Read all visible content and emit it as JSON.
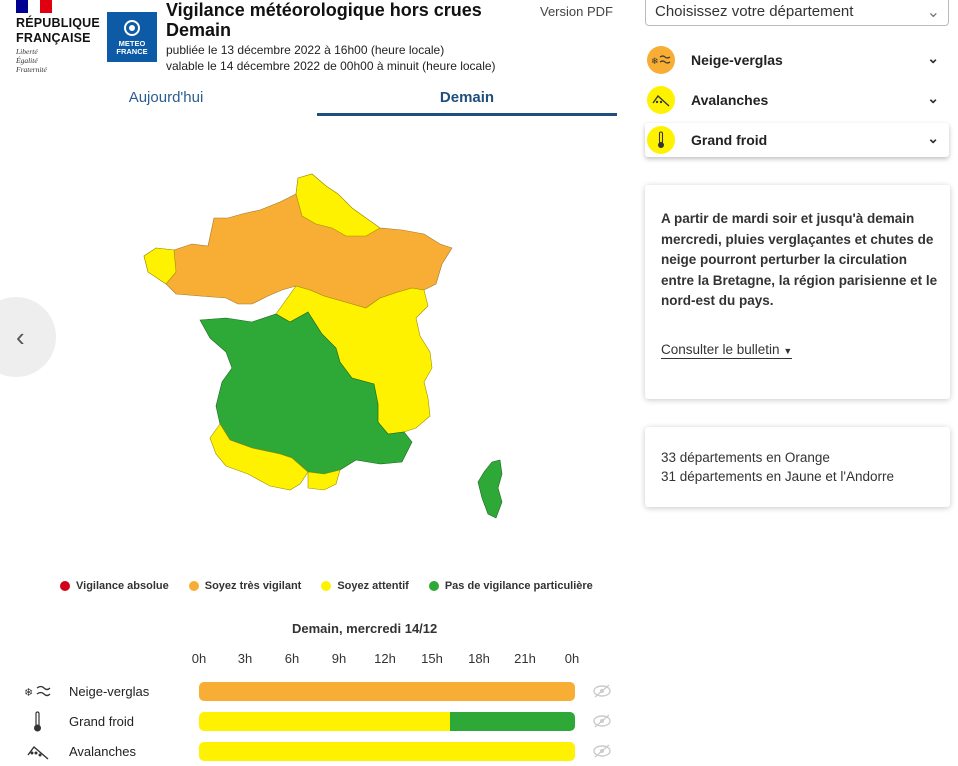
{
  "header": {
    "rf_line1": "RÉPUBLIQUE",
    "rf_line2": "FRANÇAISE",
    "devise": [
      "Liberté",
      "Égalité",
      "Fraternité"
    ],
    "logo_line1": "METEO",
    "logo_line2": "FRANCE",
    "title": "Vigilance météorologique hors crues",
    "subtitle": "Demain",
    "published": "publiée le 13 décembre 2022 à 16h00 (heure locale)",
    "valid": "valable le 14 décembre 2022 de 00h00 à minuit (heure locale)",
    "pdf_label": "Version PDF"
  },
  "tabs": [
    {
      "label": "Aujourd'hui",
      "active": false
    },
    {
      "label": "Demain",
      "active": true
    }
  ],
  "legend": [
    {
      "label": "Vigilance absolue",
      "color": "#d0021b"
    },
    {
      "label": "Soyez très vigilant",
      "color": "#f8ad34"
    },
    {
      "label": "Soyez attentif",
      "color": "#fff200"
    },
    {
      "label": "Pas de vigilance particulière",
      "color": "#2ea836"
    }
  ],
  "timeline": {
    "day_label": "Demain, mercredi 14/12",
    "hours": [
      "0h",
      "3h",
      "6h",
      "9h",
      "12h",
      "15h",
      "18h",
      "21h",
      "0h"
    ],
    "rows": [
      {
        "label": "Neige-verglas",
        "icon": "snow-ice-icon",
        "segments": [
          {
            "fraction": 1.0,
            "color": "#f8ad34"
          }
        ]
      },
      {
        "label": "Grand froid",
        "icon": "thermometer-icon",
        "segments": [
          {
            "fraction": 0.667,
            "color": "#fff200"
          },
          {
            "fraction": 0.333,
            "color": "#2ea836"
          }
        ]
      },
      {
        "label": "Avalanches",
        "icon": "avalanche-icon",
        "segments": [
          {
            "fraction": 1.0,
            "color": "#fff200"
          }
        ]
      }
    ]
  },
  "sidebar": {
    "dept_placeholder": "Choisissez votre département",
    "phenomena": [
      {
        "label": "Neige-verglas",
        "color": "#f8ad34",
        "icon": "snow-ice-icon"
      },
      {
        "label": "Avalanches",
        "color": "#fff200",
        "icon": "avalanche-icon"
      },
      {
        "label": "Grand froid",
        "color": "#fff200",
        "icon": "thermometer-icon"
      }
    ],
    "summary": "A partir de mardi soir et jusqu'à demain mercredi, pluies verglaçantes et chutes de neige pourront perturber la circulation entre la Bretagne, la région parisienne et le nord-est du pays.",
    "bulletin_link": "Consulter le bulletin",
    "count_orange": "33 départements en Orange",
    "count_yellow": "31 départements en Jaune et l'Andorre"
  },
  "colors": {
    "orange": "#f8ad34",
    "yellow": "#fff200",
    "green": "#2ea836",
    "red": "#d0021b",
    "accent_blue": "#1f4f7d"
  }
}
